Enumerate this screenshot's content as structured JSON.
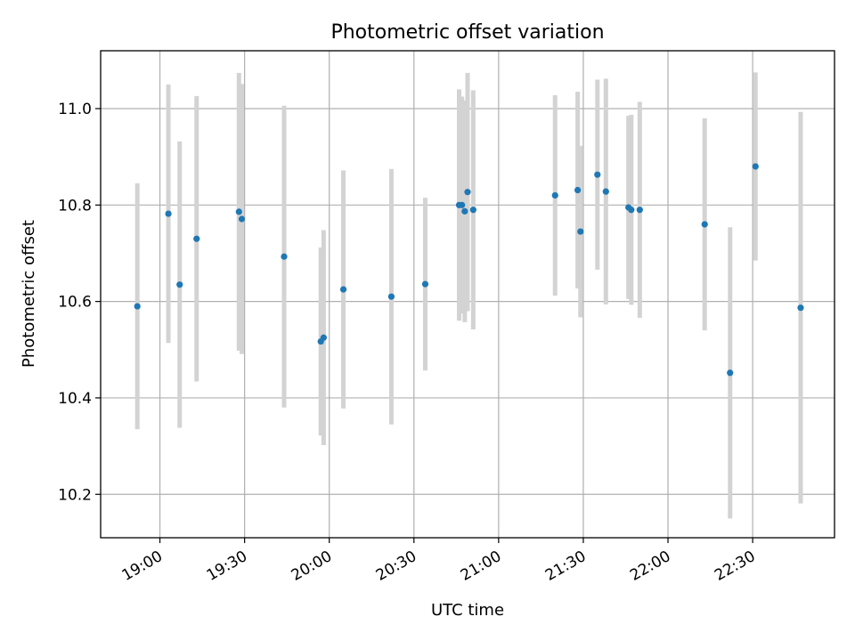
{
  "chart_data": {
    "type": "scatter",
    "title": "Photometric offset variation",
    "xlabel": "UTC time",
    "ylabel": "Photometric offset",
    "grid": true,
    "x_axis": "time",
    "xlim": [
      "18:39",
      "22:59"
    ],
    "ylim": [
      10.11,
      11.12
    ],
    "x_ticks": [
      "19:00",
      "19:30",
      "20:00",
      "20:30",
      "21:00",
      "21:30",
      "22:00",
      "22:30"
    ],
    "y_ticks": [
      "10.2",
      "10.4",
      "10.6",
      "10.8",
      "11.0"
    ],
    "colors": {
      "point": "#1f77b4",
      "error_bar": "#d3d3d3",
      "grid": "#b0b0b0"
    },
    "points": [
      {
        "x": "18:52",
        "y": 10.59,
        "err": 0.255
      },
      {
        "x": "19:03",
        "y": 10.782,
        "err": 0.268
      },
      {
        "x": "19:07",
        "y": 10.635,
        "err": 0.297
      },
      {
        "x": "19:13",
        "y": 10.73,
        "err": 0.296
      },
      {
        "x": "19:28",
        "y": 10.786,
        "err": 0.288
      },
      {
        "x": "19:29",
        "y": 10.771,
        "err": 0.28
      },
      {
        "x": "19:44",
        "y": 10.693,
        "err": 0.313
      },
      {
        "x": "19:57",
        "y": 10.517,
        "err": 0.195
      },
      {
        "x": "19:58",
        "y": 10.525,
        "err": 0.223
      },
      {
        "x": "20:05",
        "y": 10.625,
        "err": 0.247
      },
      {
        "x": "20:22",
        "y": 10.61,
        "err": 0.265
      },
      {
        "x": "20:34",
        "y": 10.636,
        "err": 0.179
      },
      {
        "x": "20:46",
        "y": 10.8,
        "err": 0.24
      },
      {
        "x": "20:47",
        "y": 10.8,
        "err": 0.225
      },
      {
        "x": "20:48",
        "y": 10.787,
        "err": 0.23
      },
      {
        "x": "20:49",
        "y": 10.827,
        "err": 0.247
      },
      {
        "x": "20:51",
        "y": 10.79,
        "err": 0.248
      },
      {
        "x": "21:20",
        "y": 10.82,
        "err": 0.208
      },
      {
        "x": "21:28",
        "y": 10.831,
        "err": 0.204
      },
      {
        "x": "21:29",
        "y": 10.745,
        "err": 0.178
      },
      {
        "x": "21:35",
        "y": 10.863,
        "err": 0.197
      },
      {
        "x": "21:38",
        "y": 10.828,
        "err": 0.234
      },
      {
        "x": "21:46",
        "y": 10.795,
        "err": 0.19
      },
      {
        "x": "21:47",
        "y": 10.79,
        "err": 0.197
      },
      {
        "x": "21:50",
        "y": 10.79,
        "err": 0.224
      },
      {
        "x": "22:13",
        "y": 10.76,
        "err": 0.22
      },
      {
        "x": "22:22",
        "y": 10.452,
        "err": 0.302
      },
      {
        "x": "22:31",
        "y": 10.88,
        "err": 0.195
      },
      {
        "x": "22:47",
        "y": 10.587,
        "err": 0.406
      }
    ]
  }
}
